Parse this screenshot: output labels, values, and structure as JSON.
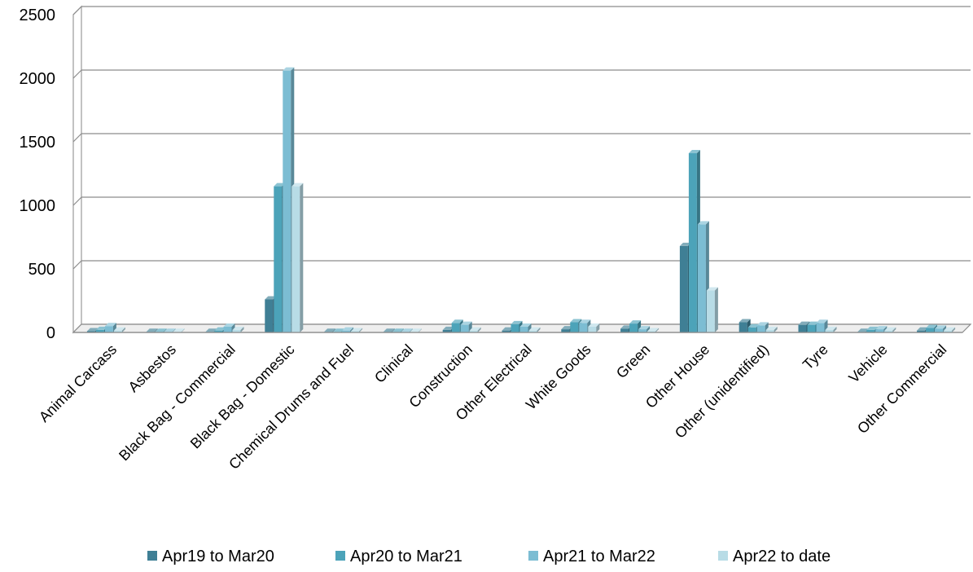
{
  "chart_data": {
    "type": "bar",
    "style": "3d-clustered-column",
    "title": "",
    "xlabel": "",
    "ylabel": "",
    "ylim": [
      0,
      2500
    ],
    "yticks": [
      0,
      500,
      1000,
      1500,
      2000,
      2500
    ],
    "grid": true,
    "legend_position": "bottom",
    "categories": [
      "Animal Carcass",
      "Asbestos",
      "Black Bag - Commercial",
      "Black Bag - Domestic",
      "Chemical Drums and Fuel",
      "Clinical",
      "Construction",
      "Other Electrical",
      "White Goods",
      "Green",
      "Other House",
      "Other (unidentified)",
      "Tyre",
      "Vehicle",
      "Other Commercial"
    ],
    "series": [
      {
        "name": "Apr19 to Mar20",
        "color": "#3f7f95",
        "values": [
          10,
          5,
          5,
          260,
          5,
          5,
          20,
          15,
          25,
          30,
          680,
          80,
          60,
          5,
          15
        ]
      },
      {
        "name": "Apr20 to Mar21",
        "color": "#4ca3b9",
        "values": [
          20,
          5,
          15,
          1150,
          5,
          5,
          75,
          65,
          80,
          70,
          1410,
          40,
          60,
          20,
          35
        ]
      },
      {
        "name": "Apr21 to Mar22",
        "color": "#7cbdd3",
        "values": [
          50,
          5,
          45,
          2060,
          15,
          5,
          60,
          45,
          75,
          25,
          850,
          55,
          75,
          25,
          30
        ]
      },
      {
        "name": "Apr22 to date",
        "color": "#b8dce6",
        "values": [
          15,
          5,
          20,
          1150,
          10,
          5,
          15,
          15,
          45,
          10,
          330,
          20,
          20,
          15,
          15
        ]
      }
    ]
  }
}
